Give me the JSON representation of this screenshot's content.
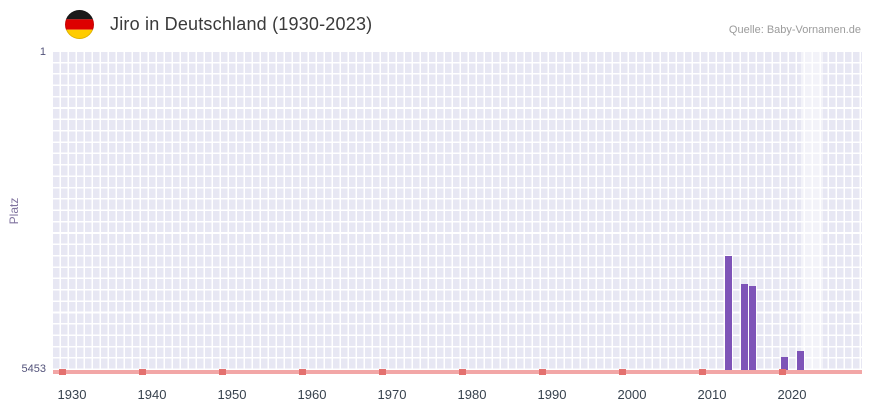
{
  "header": {
    "title": "Jiro in Deutschland (1930-2023)",
    "source": "Quelle: Baby-Vornamen.de",
    "flag": {
      "name": "germany-flag-icon",
      "colors": [
        "#1a1a1a",
        "#dd0000",
        "#ffcc00"
      ]
    }
  },
  "chart_data": {
    "type": "bar",
    "title": "Jiro in Deutschland (1930-2023)",
    "xlabel": "",
    "ylabel": "Platz",
    "legend": "none",
    "y_axis": {
      "min": 1,
      "max": 5453,
      "inverted": true,
      "tick_labels": [
        "1",
        "5453"
      ]
    },
    "x_axis": {
      "first_year": 1930,
      "last_year": 2023,
      "tick_labels": [
        "1930",
        "1940",
        "1950",
        "1960",
        "1970",
        "1980",
        "1990",
        "2000",
        "2010",
        "2020"
      ]
    },
    "series": [
      {
        "name": "Platz",
        "color": "#7e54b8",
        "points": [
          {
            "year": 2012,
            "rank": 3500
          },
          {
            "year": 2014,
            "rank": 3980
          },
          {
            "year": 2015,
            "rank": 4010
          },
          {
            "year": 2019,
            "rank": 5230
          },
          {
            "year": 2021,
            "rank": 5120
          }
        ]
      }
    ],
    "grid": {
      "on": true,
      "background": "#e7e7f3",
      "line_color": "#ffffff"
    },
    "baseline": {
      "color": "#f2a6a6",
      "tick_color": "#e4716f"
    },
    "highlight_band": {
      "from_year": 2022,
      "to_year": 2023,
      "color": "rgba(255,255,255,0.5)"
    }
  }
}
